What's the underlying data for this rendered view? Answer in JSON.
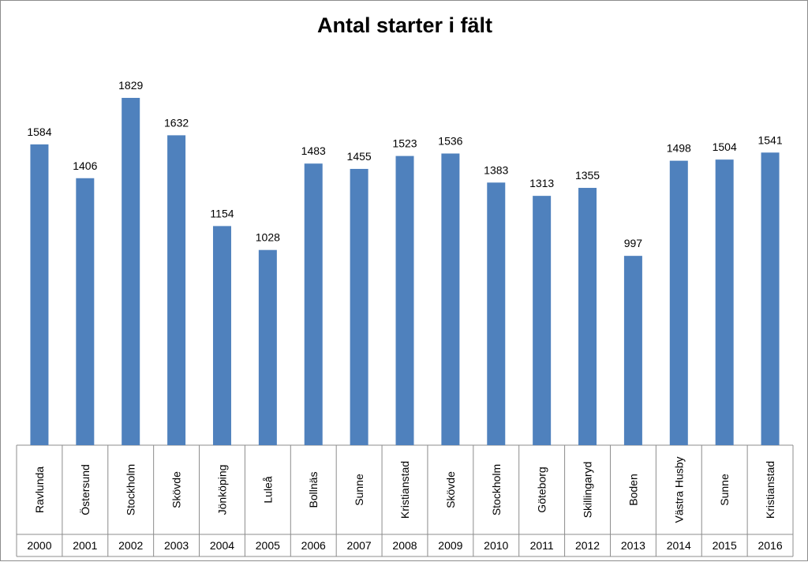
{
  "chart_data": {
    "type": "bar",
    "title": "Antal starter i fält",
    "xlabel": "",
    "ylabel": "",
    "ylim": [
      0,
      1900
    ],
    "grid": false,
    "legend": "none",
    "bar_color": "#4f81bd",
    "categories": [
      {
        "year": "2000",
        "place": "Ravlunda"
      },
      {
        "year": "2001",
        "place": "Östersund"
      },
      {
        "year": "2002",
        "place": "Stockholm"
      },
      {
        "year": "2003",
        "place": "Skövde"
      },
      {
        "year": "2004",
        "place": "Jönköping"
      },
      {
        "year": "2005",
        "place": "Luleå"
      },
      {
        "year": "2006",
        "place": "Bollnäs"
      },
      {
        "year": "2007",
        "place": "Sunne"
      },
      {
        "year": "2008",
        "place": "Kristianstad"
      },
      {
        "year": "2009",
        "place": "Skövde"
      },
      {
        "year": "2010",
        "place": "Stockholm"
      },
      {
        "year": "2011",
        "place": "Göteborg"
      },
      {
        "year": "2012",
        "place": "Skillingaryd"
      },
      {
        "year": "2013",
        "place": "Boden"
      },
      {
        "year": "2014",
        "place": "Västra Husby"
      },
      {
        "year": "2015",
        "place": "Sunne"
      },
      {
        "year": "2016",
        "place": "Kristianstad"
      }
    ],
    "values": [
      1584,
      1406,
      1829,
      1632,
      1154,
      1028,
      1483,
      1455,
      1523,
      1536,
      1383,
      1313,
      1355,
      997,
      1498,
      1504,
      1541
    ]
  }
}
